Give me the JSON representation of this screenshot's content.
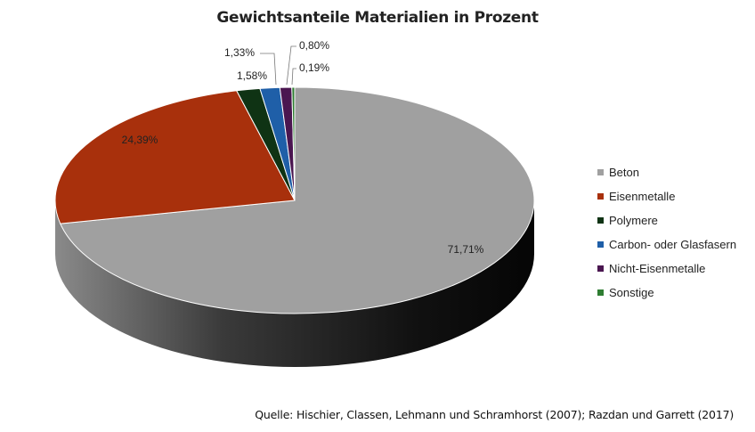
{
  "chart_data": {
    "type": "pie",
    "title": "Gewichtsanteile Materialien in Prozent",
    "slices": [
      {
        "name": "Beton",
        "value": 71.71,
        "label": "71,71%",
        "color": "#a0a0a0"
      },
      {
        "name": "Eisenmetalle",
        "value": 24.39,
        "label": "24,39%",
        "color": "#a8300c"
      },
      {
        "name": "Polymere",
        "value": 1.58,
        "label": "1,58%",
        "color": "#0f3314"
      },
      {
        "name": "Carbon- oder Glasfasern",
        "value": 1.33,
        "label": "1,33%",
        "color": "#1f5fa8"
      },
      {
        "name": "Nicht-Eisenmetalle",
        "value": 0.8,
        "label": "0,80%",
        "color": "#4a1650"
      },
      {
        "name": "Sonstige",
        "value": 0.19,
        "label": "0,19%",
        "color": "#2f7d32"
      }
    ],
    "legend_position": "right",
    "style": "3d-pie"
  },
  "source_note": "Quelle: Hischier, Classen, Lehmann und Schramhorst (2007); Razdan und Garrett (2017)"
}
